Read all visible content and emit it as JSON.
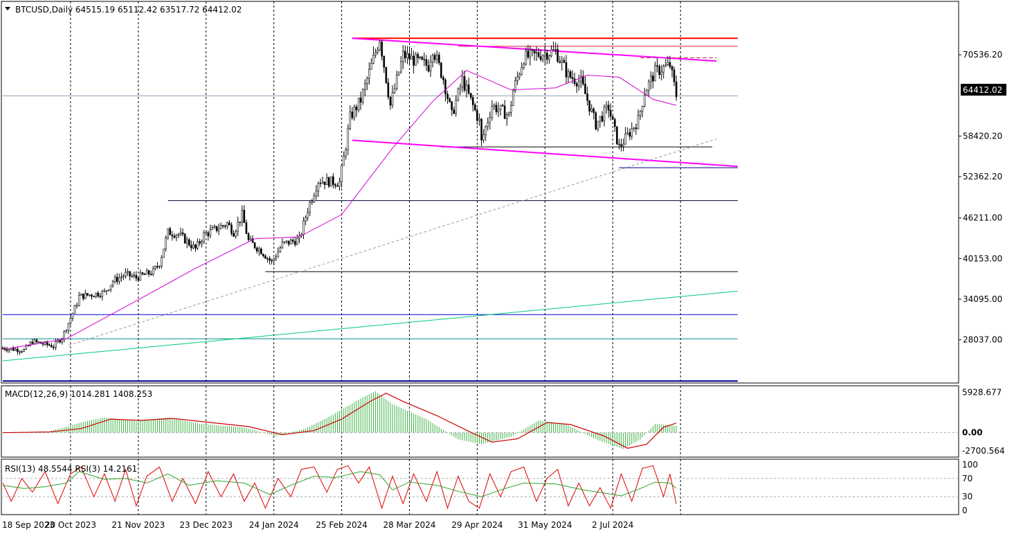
{
  "header": {
    "symbol_arrow_icon": "triangle-down-icon",
    "ohlc_label": "BTCUSD,Daily  64515.19 65112.42 63517.72 64412.02"
  },
  "macd_label": "MACD(12,26,9) 1014.281 1408.253",
  "rsi_label": "RSI(13) 48.5544  RSI(3) 14.2161",
  "current_price_tag": "64412.02",
  "chart_data": {
    "type": "candlestick",
    "symbol": "BTCUSD",
    "timeframe": "Daily",
    "ohlc_last": {
      "open": 64515.19,
      "high": 65112.42,
      "low": 63517.72,
      "close": 64412.02
    },
    "price_axis_ticks": [
      70536.2,
      58420.2,
      52362.2,
      46211.0,
      40153.0,
      34095.0,
      28037.0
    ],
    "price_ticks_text": [
      "70536.20",
      "58420.20",
      "52362.20",
      "46211.00",
      "40153.00",
      "34095.00",
      "28037.00"
    ],
    "price_range": [
      21600,
      78500
    ],
    "date_ticks": [
      "18 Sep 2023",
      "20 Oct 2023",
      "21 Nov 2023",
      "23 Dec 2023",
      "24 Jan 2024",
      "25 Feb 2024",
      "28 Mar 2024",
      "29 Apr 2024",
      "31 May 2024",
      "2 Jul 2024"
    ],
    "price_path": [
      [
        "2023-09-18",
        26800
      ],
      [
        "2023-09-28",
        26500
      ],
      [
        "2023-10-02",
        27800
      ],
      [
        "2023-10-12",
        27100
      ],
      [
        "2023-10-16",
        28400
      ],
      [
        "2023-10-23",
        33500
      ],
      [
        "2023-10-24",
        34500
      ],
      [
        "2023-11-05",
        35100
      ],
      [
        "2023-11-09",
        36800
      ],
      [
        "2023-11-15",
        37800
      ],
      [
        "2023-11-20",
        37300
      ],
      [
        "2023-11-28",
        38200
      ],
      [
        "2023-12-01",
        39500
      ],
      [
        "2023-12-05",
        44100
      ],
      [
        "2023-12-10",
        43800
      ],
      [
        "2023-12-18",
        41600
      ],
      [
        "2023-12-22",
        43700
      ],
      [
        "2024-01-02",
        45400
      ],
      [
        "2024-01-05",
        44100
      ],
      [
        "2024-01-09",
        46700
      ],
      [
        "2024-01-12",
        42800
      ],
      [
        "2024-01-18",
        41300
      ],
      [
        "2024-01-23",
        39600
      ],
      [
        "2024-01-28",
        42300
      ],
      [
        "2024-02-05",
        43000
      ],
      [
        "2024-02-09",
        47500
      ],
      [
        "2024-02-14",
        51800
      ],
      [
        "2024-02-24",
        51500
      ],
      [
        "2024-02-27",
        57000
      ],
      [
        "2024-02-29",
        61200
      ],
      [
        "2024-03-05",
        63800
      ],
      [
        "2024-03-14",
        73000
      ],
      [
        "2024-03-19",
        63000
      ],
      [
        "2024-03-25",
        70500
      ],
      [
        "2024-04-01",
        69500
      ],
      [
        "2024-04-06",
        68900
      ],
      [
        "2024-04-08",
        71500
      ],
      [
        "2024-04-13",
        67000
      ],
      [
        "2024-04-17",
        61500
      ],
      [
        "2024-04-22",
        66800
      ],
      [
        "2024-04-30",
        60600
      ],
      [
        "2024-05-01",
        57500
      ],
      [
        "2024-05-06",
        63000
      ],
      [
        "2024-05-14",
        61500
      ],
      [
        "2024-05-16",
        65200
      ],
      [
        "2024-05-21",
        70100
      ],
      [
        "2024-06-05",
        71100
      ],
      [
        "2024-06-11",
        67400
      ],
      [
        "2024-06-17",
        66500
      ],
      [
        "2024-06-24",
        60200
      ],
      [
        "2024-06-30",
        62700
      ],
      [
        "2024-07-05",
        56700
      ],
      [
        "2024-07-14",
        60800
      ],
      [
        "2024-07-17",
        65000
      ],
      [
        "2024-07-22",
        68000
      ],
      [
        "2024-07-29",
        69000
      ],
      [
        "2024-08-01",
        64515
      ]
    ],
    "moving_average": {
      "color": "#d400d4",
      "path": [
        [
          "2023-09-18",
          26600
        ],
        [
          "2023-10-18",
          28200
        ],
        [
          "2023-11-18",
          33500
        ],
        [
          "2023-12-18",
          38700
        ],
        [
          "2024-01-15",
          43100
        ],
        [
          "2024-02-05",
          43400
        ],
        [
          "2024-02-25",
          46700
        ],
        [
          "2024-03-20",
          56600
        ],
        [
          "2024-04-08",
          63600
        ],
        [
          "2024-04-24",
          68200
        ],
        [
          "2024-05-15",
          65300
        ],
        [
          "2024-06-05",
          65600
        ],
        [
          "2024-06-20",
          67500
        ],
        [
          "2024-07-05",
          67200
        ],
        [
          "2024-07-21",
          63900
        ],
        [
          "2024-08-01",
          63000
        ]
      ]
    },
    "trendlines": [
      {
        "name": "channel-top",
        "color": "#ff00ff",
        "width": 2,
        "from": [
          "2024-03-01",
          73000
        ],
        "to": [
          "2024-08-20",
          69600
        ]
      },
      {
        "name": "channel-bottom",
        "color": "#ff00ff",
        "width": 2,
        "from": [
          "2024-03-01",
          57800
        ],
        "to": [
          "2024-08-30",
          53900
        ]
      },
      {
        "name": "long-support-dashed",
        "color": "#999999",
        "width": 1,
        "dash": "4,3",
        "from": [
          "2023-10-19",
          27200
        ],
        "to": [
          "2024-08-20",
          58000
        ]
      },
      {
        "name": "green-trend",
        "color": "#00c878",
        "width": 1,
        "from": [
          "2023-09-18",
          24900
        ],
        "to": [
          "2024-08-30",
          35300
        ]
      }
    ],
    "horizontal_lines": [
      {
        "price": 73000,
        "color": "#ff0000",
        "width": 2,
        "from": "2024-03-01",
        "to": "2024-08-30"
      },
      {
        "price": 71800,
        "color": "#dc143c",
        "width": 1,
        "from": "2024-04-20",
        "to": "2024-08-30"
      },
      {
        "price": 70100,
        "color": "#a52a2a",
        "width": 1,
        "dash": "6,3",
        "from": "2024-07-15",
        "to": "2024-08-20"
      },
      {
        "price": 64412.02,
        "color": "#8aa0b4",
        "width": 1,
        "from": "2023-09-18",
        "to": "2024-08-30"
      },
      {
        "price": 56800,
        "color": "#000000",
        "width": 1,
        "from": "2024-04-12",
        "to": "2024-08-18"
      },
      {
        "price": 53700,
        "color": "#00008b",
        "width": 1,
        "from": "2024-07-05",
        "to": "2024-08-30"
      },
      {
        "price": 48800,
        "color": "#000033",
        "width": 1,
        "from": "2023-12-05",
        "to": "2024-08-30"
      },
      {
        "price": 38200,
        "color": "#000000",
        "width": 1,
        "from": "2024-01-20",
        "to": "2024-08-30"
      },
      {
        "price": 31800,
        "color": "#0000cd",
        "width": 1,
        "from": "2023-09-18",
        "to": "2024-08-30"
      },
      {
        "price": 28200,
        "color": "#008b8b",
        "width": 1,
        "from": "2023-09-18",
        "to": "2024-08-30"
      },
      {
        "price": 21900,
        "color": "#00008b",
        "width": 2,
        "from": "2023-09-18",
        "to": "2024-08-30"
      }
    ],
    "macd": {
      "params": [
        12,
        26,
        9
      ],
      "main": 1014.281,
      "signal": 1408.253,
      "ticks": [
        5928.677,
        0.0,
        -2700.564
      ],
      "ticks_text": [
        "5928.677",
        "0.00",
        "-2700.564"
      ],
      "range": [
        -3600,
        6900
      ],
      "histogram_color": "#3cb043",
      "signal_color": "#cc0000",
      "histogram_path": [
        [
          "2023-09-18",
          50
        ],
        [
          "2023-10-10",
          200
        ],
        [
          "2023-10-25",
          1500
        ],
        [
          "2023-11-05",
          2250
        ],
        [
          "2023-11-20",
          1700
        ],
        [
          "2023-12-05",
          2250
        ],
        [
          "2023-12-20",
          1300
        ],
        [
          "2024-01-10",
          750
        ],
        [
          "2024-01-25",
          -500
        ],
        [
          "2024-02-08",
          600
        ],
        [
          "2024-02-20",
          2500
        ],
        [
          "2024-03-06",
          5200
        ],
        [
          "2024-03-12",
          6100
        ],
        [
          "2024-03-20",
          4200
        ],
        [
          "2024-04-05",
          2000
        ],
        [
          "2024-04-20",
          -1000
        ],
        [
          "2024-05-01",
          -1700
        ],
        [
          "2024-05-15",
          -600
        ],
        [
          "2024-05-28",
          1800
        ],
        [
          "2024-06-10",
          1200
        ],
        [
          "2024-06-25",
          -1100
        ],
        [
          "2024-07-07",
          -2400
        ],
        [
          "2024-07-15",
          -1000
        ],
        [
          "2024-07-22",
          1300
        ],
        [
          "2024-08-01",
          1014
        ]
      ],
      "signal_path": [
        [
          "2023-09-18",
          0
        ],
        [
          "2023-10-10",
          100
        ],
        [
          "2023-10-25",
          600
        ],
        [
          "2023-11-08",
          2000
        ],
        [
          "2023-11-22",
          1800
        ],
        [
          "2023-12-07",
          2100
        ],
        [
          "2023-12-22",
          1600
        ],
        [
          "2024-01-12",
          900
        ],
        [
          "2024-01-28",
          -300
        ],
        [
          "2024-02-12",
          300
        ],
        [
          "2024-02-25",
          2000
        ],
        [
          "2024-03-10",
          4700
        ],
        [
          "2024-03-17",
          5800
        ],
        [
          "2024-03-25",
          4600
        ],
        [
          "2024-04-10",
          2500
        ],
        [
          "2024-04-25",
          200
        ],
        [
          "2024-05-06",
          -1400
        ],
        [
          "2024-05-18",
          -900
        ],
        [
          "2024-06-01",
          1500
        ],
        [
          "2024-06-12",
          1200
        ],
        [
          "2024-06-28",
          -500
        ],
        [
          "2024-07-09",
          -2300
        ],
        [
          "2024-07-18",
          -1700
        ],
        [
          "2024-07-26",
          800
        ],
        [
          "2024-08-01",
          1408
        ]
      ]
    },
    "rsi": {
      "params": [
        13,
        3
      ],
      "rsi13": 48.5544,
      "rsi3": 14.2161,
      "ticks": [
        100,
        70,
        30,
        0
      ],
      "ticks_text": [
        "100",
        "70",
        "30",
        "0"
      ],
      "levels": [
        70,
        30
      ],
      "rsi13_color": "#2ca02c",
      "rsi3_color": "#dd0000",
      "rsi13_path": [
        [
          "2023-09-18",
          55
        ],
        [
          "2023-09-28",
          48
        ],
        [
          "2023-10-08",
          52
        ],
        [
          "2023-10-18",
          60
        ],
        [
          "2023-10-24",
          85
        ],
        [
          "2023-11-05",
          68
        ],
        [
          "2023-11-15",
          70
        ],
        [
          "2023-11-25",
          60
        ],
        [
          "2023-12-05",
          80
        ],
        [
          "2023-12-15",
          55
        ],
        [
          "2023-12-28",
          65
        ],
        [
          "2024-01-10",
          60
        ],
        [
          "2024-01-22",
          35
        ],
        [
          "2024-02-01",
          55
        ],
        [
          "2024-02-12",
          75
        ],
        [
          "2024-02-22",
          72
        ],
        [
          "2024-03-05",
          85
        ],
        [
          "2024-03-14",
          78
        ],
        [
          "2024-03-20",
          45
        ],
        [
          "2024-03-28",
          62
        ],
        [
          "2024-04-10",
          55
        ],
        [
          "2024-04-20",
          42
        ],
        [
          "2024-05-01",
          30
        ],
        [
          "2024-05-10",
          45
        ],
        [
          "2024-05-21",
          60
        ],
        [
          "2024-06-05",
          58
        ],
        [
          "2024-06-18",
          45
        ],
        [
          "2024-06-28",
          38
        ],
        [
          "2024-07-06",
          32
        ],
        [
          "2024-07-15",
          48
        ],
        [
          "2024-07-22",
          62
        ],
        [
          "2024-07-29",
          60
        ],
        [
          "2024-08-01",
          48.55
        ]
      ],
      "rsi3_path": [
        [
          "2023-09-18",
          60
        ],
        [
          "2023-09-22",
          20
        ],
        [
          "2023-09-27",
          70
        ],
        [
          "2023-10-02",
          40
        ],
        [
          "2023-10-08",
          85
        ],
        [
          "2023-10-14",
          15
        ],
        [
          "2023-10-20",
          80
        ],
        [
          "2023-10-25",
          95
        ],
        [
          "2023-10-31",
          30
        ],
        [
          "2023-11-05",
          80
        ],
        [
          "2023-11-10",
          20
        ],
        [
          "2023-11-15",
          90
        ],
        [
          "2023-11-20",
          10
        ],
        [
          "2023-11-25",
          75
        ],
        [
          "2023-12-01",
          95
        ],
        [
          "2023-12-07",
          20
        ],
        [
          "2023-12-12",
          70
        ],
        [
          "2023-12-18",
          15
        ],
        [
          "2023-12-24",
          85
        ],
        [
          "2023-12-30",
          30
        ],
        [
          "2024-01-05",
          80
        ],
        [
          "2024-01-10",
          20
        ],
        [
          "2024-01-15",
          60
        ],
        [
          "2024-01-20",
          5
        ],
        [
          "2024-01-26",
          70
        ],
        [
          "2024-02-01",
          30
        ],
        [
          "2024-02-06",
          90
        ],
        [
          "2024-02-12",
          95
        ],
        [
          "2024-02-18",
          40
        ],
        [
          "2024-02-23",
          90
        ],
        [
          "2024-02-28",
          98
        ],
        [
          "2024-03-04",
          60
        ],
        [
          "2024-03-09",
          95
        ],
        [
          "2024-03-15",
          5
        ],
        [
          "2024-03-20",
          75
        ],
        [
          "2024-03-25",
          15
        ],
        [
          "2024-03-30",
          80
        ],
        [
          "2024-04-05",
          20
        ],
        [
          "2024-04-10",
          85
        ],
        [
          "2024-04-15",
          5
        ],
        [
          "2024-04-20",
          75
        ],
        [
          "2024-04-25",
          20
        ],
        [
          "2024-04-30",
          5
        ],
        [
          "2024-05-05",
          80
        ],
        [
          "2024-05-10",
          30
        ],
        [
          "2024-05-15",
          85
        ],
        [
          "2024-05-21",
          95
        ],
        [
          "2024-05-27",
          20
        ],
        [
          "2024-06-01",
          70
        ],
        [
          "2024-06-06",
          90
        ],
        [
          "2024-06-11",
          10
        ],
        [
          "2024-06-16",
          60
        ],
        [
          "2024-06-21",
          10
        ],
        [
          "2024-06-26",
          50
        ],
        [
          "2024-07-01",
          5
        ],
        [
          "2024-07-06",
          80
        ],
        [
          "2024-07-11",
          20
        ],
        [
          "2024-07-16",
          92
        ],
        [
          "2024-07-21",
          98
        ],
        [
          "2024-07-26",
          30
        ],
        [
          "2024-07-29",
          80
        ],
        [
          "2024-08-01",
          14.22
        ]
      ]
    }
  }
}
